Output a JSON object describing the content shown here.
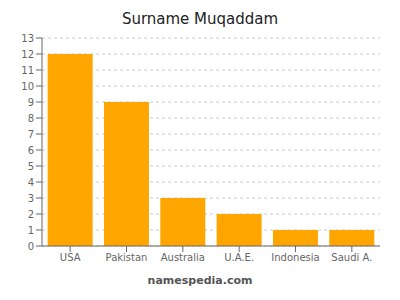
{
  "chart_data": {
    "type": "bar",
    "title": "Surname Muqaddam",
    "categories": [
      "USA",
      "Pakistan",
      "Australia",
      "U.A.E.",
      "Indonesia",
      "Saudi A."
    ],
    "values": [
      12,
      9,
      3,
      2,
      1,
      1
    ],
    "color": "#FFA500",
    "ylim": [
      0,
      13
    ],
    "yticks": [
      0,
      1,
      2,
      3,
      4,
      5,
      6,
      7,
      8,
      9,
      10,
      11,
      12,
      13
    ],
    "grid": true,
    "annotations": [
      "namespedia.com"
    ]
  }
}
